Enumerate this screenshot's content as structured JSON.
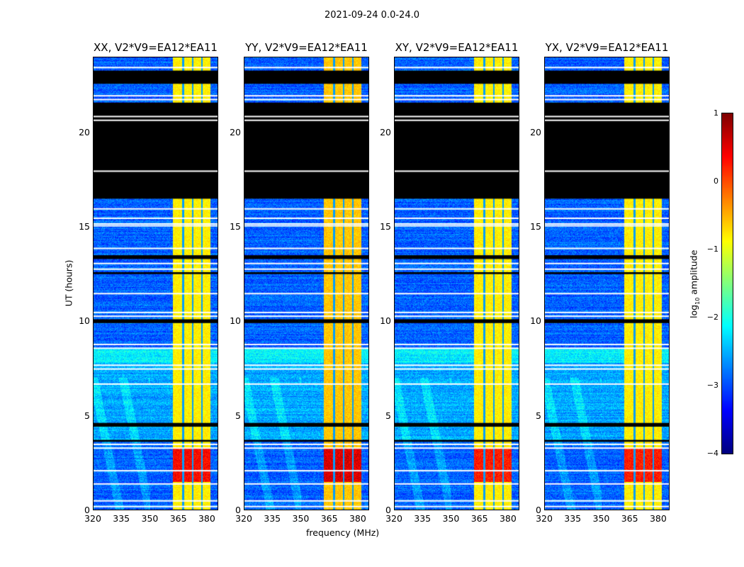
{
  "suptitle": "2021-09-24 0.0-24.0",
  "chart_data": {
    "type": "heatmap",
    "xlabel": "frequency (MHz)",
    "ylabel": "UT (hours)",
    "xlim": [
      320,
      386
    ],
    "ylim": [
      0,
      24
    ],
    "xticks": [
      "320",
      "335",
      "350",
      "365",
      "380"
    ],
    "xtick_values": [
      320,
      335,
      350,
      365,
      380
    ],
    "yticks": [
      "0",
      "5",
      "10",
      "15",
      "20"
    ],
    "ytick_values": [
      0,
      5,
      10,
      15,
      20
    ],
    "panels": [
      {
        "title": "XX, V2*V9=EA12*EA11",
        "band_level": -0.8,
        "peak_level": 0.5
      },
      {
        "title": "YY, V2*V9=EA12*EA11",
        "band_level": -0.6,
        "peak_level": 0.7
      },
      {
        "title": "XY, V2*V9=EA12*EA11",
        "band_level": -0.8,
        "peak_level": 0.4
      },
      {
        "title": "YX, V2*V9=EA12*EA11",
        "band_level": -0.8,
        "peak_level": 0.4
      }
    ],
    "background_level": -2.9,
    "rfi_band_mhz": [
      362,
      382
    ],
    "rfi_subband_gaps_mhz": [
      367.5,
      372.5,
      377.5
    ],
    "strong_rfi_hours": [
      1.5,
      3.3
    ],
    "flagged_black_hours": [
      [
        16.5,
        21.6
      ],
      [
        13.3,
        13.5
      ],
      [
        12.5,
        12.6
      ],
      [
        9.9,
        10.1
      ],
      [
        4.4,
        4.6
      ],
      [
        3.6,
        3.7
      ],
      [
        22.6,
        23.3
      ]
    ],
    "flagged_white_hours": [
      0.2,
      0.5,
      1.4,
      2.1,
      3.3,
      3.5,
      6.7,
      7.5,
      7.7,
      8.6,
      8.8,
      10.3,
      10.5,
      11.5,
      12.8,
      13.1,
      13.9,
      15.1,
      15.2,
      15.5,
      16.0,
      18.0,
      20.7,
      20.9,
      21.8,
      22.0,
      23.5
    ],
    "colorbar": {
      "label": "log",
      "label_sub": "10",
      "label_rest": " amplitude",
      "range": [
        -4,
        1
      ],
      "ticks": [
        "1",
        "0",
        "−1",
        "−2",
        "−3",
        "−4"
      ],
      "tick_values": [
        1,
        0,
        -1,
        -2,
        -3,
        -4
      ],
      "colormap": "jet"
    }
  }
}
